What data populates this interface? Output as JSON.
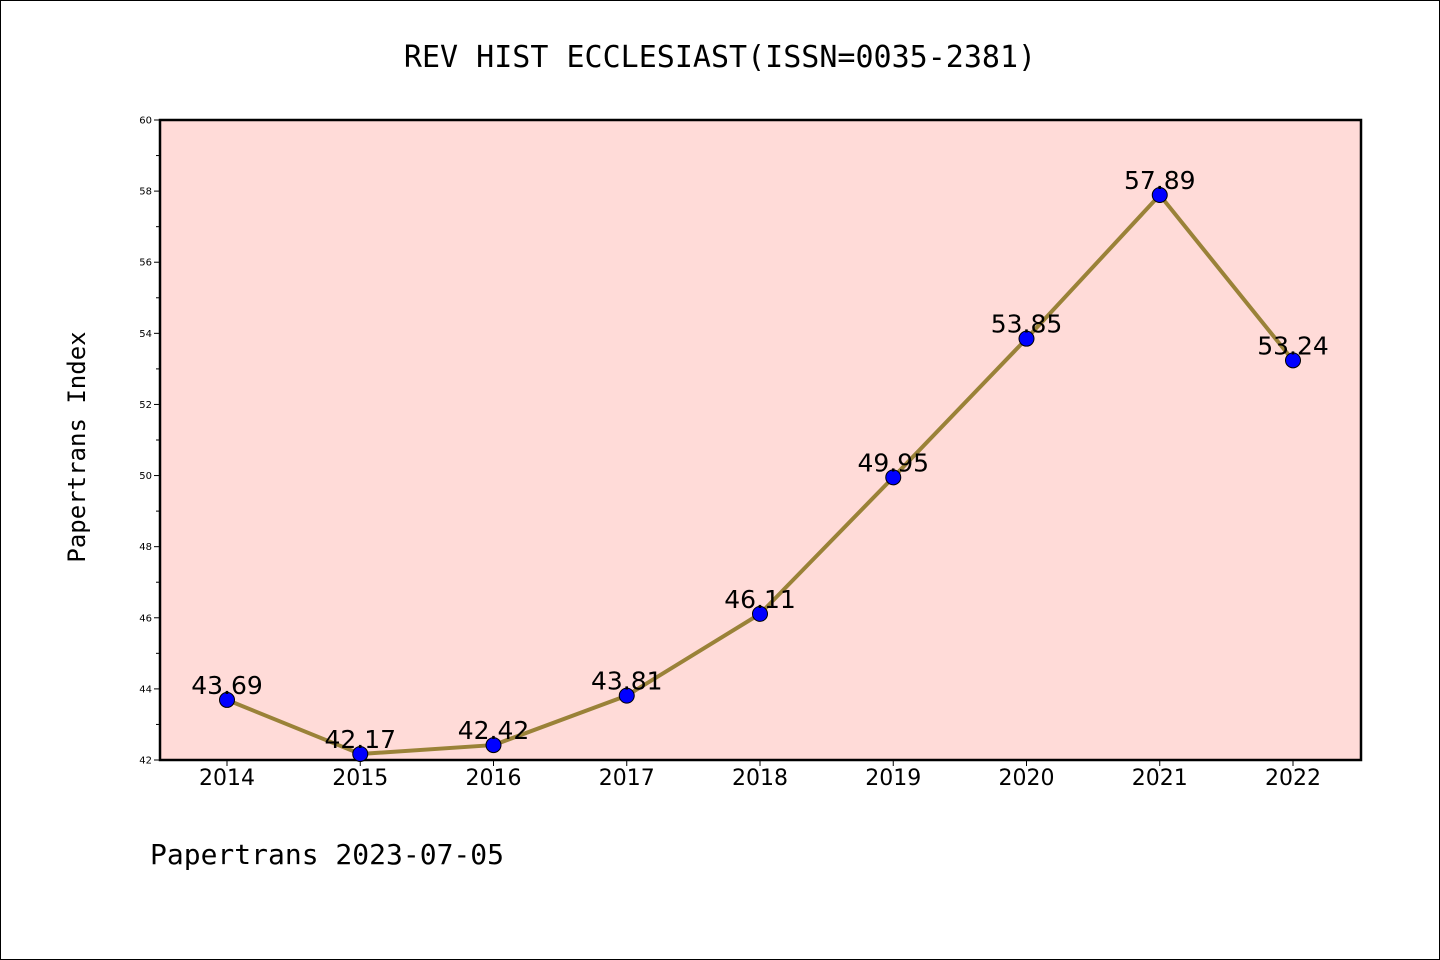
{
  "chart_data": {
    "type": "line",
    "title": "REV HIST ECCLESIAST(ISSN=0035-2381)",
    "ylabel": "Papertrans Index",
    "xlabel": "",
    "footer": "Papertrans 2023-07-05",
    "categories": [
      "2014",
      "2015",
      "2016",
      "2017",
      "2018",
      "2019",
      "2020",
      "2021",
      "2022"
    ],
    "values": [
      43.69,
      42.17,
      42.42,
      43.81,
      46.11,
      49.95,
      53.85,
      57.89,
      53.24
    ],
    "value_labels": [
      "43.69",
      "42.17",
      "42.42",
      "43.81",
      "46.11",
      "49.95",
      "53.85",
      "57.89",
      "53.24"
    ],
    "ylim": [
      42,
      60
    ],
    "yticks": [
      42,
      44,
      46,
      48,
      50,
      52,
      54,
      56,
      58,
      60
    ],
    "ytick_labels": [
      "42",
      "44",
      "46",
      "48",
      "50",
      "52",
      "54",
      "56",
      "58",
      "60"
    ],
    "grid": false,
    "colors": {
      "plot_background": "#ffdbd8",
      "line": "#9a8238",
      "marker": "#0000ff"
    }
  }
}
